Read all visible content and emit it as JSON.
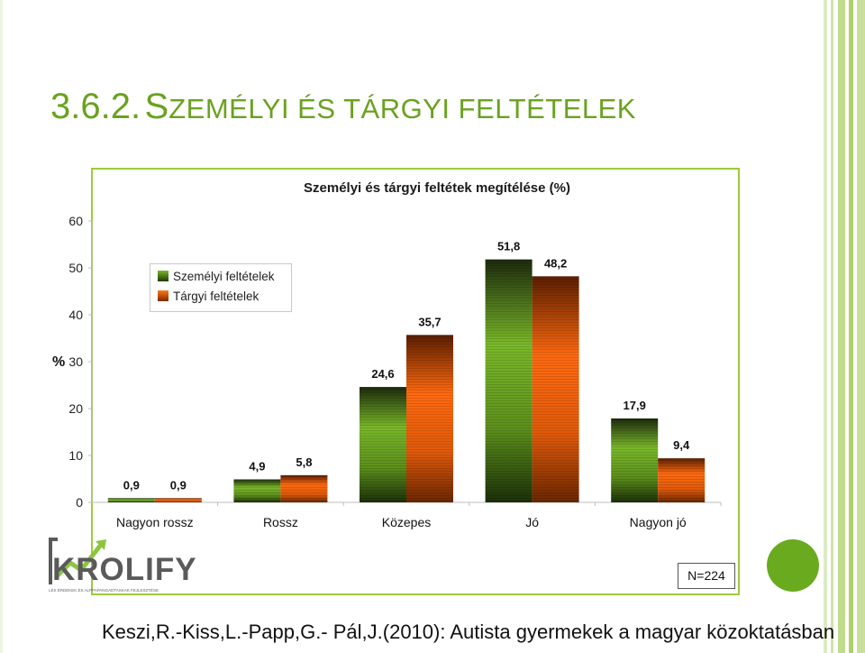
{
  "slide": {
    "heading_number": "3.6.2.",
    "heading_first_letter": "S",
    "heading_rest_1": "ZEMÉLYI ÉS ",
    "heading_rest_2": "TÁRGYI FELTÉTELEK",
    "citation": "Keszi,R.-Kiss,L.-Papp,G.- Pál,J.(2010): Autista gyermekek a magyar közoktatásban",
    "sample_size": "N=224",
    "logo": "KROLIFY",
    "logo_tagline": "LÉS ÉRDEKEK ÉS ALPPAPANGADTASKAK FEJLESZTÉSE",
    "accent_color": "#6aa21e"
  },
  "chart_data": {
    "type": "bar",
    "title": "Személyi és tárgyi feltétek megítélése (%)",
    "ylabel": "%",
    "ylim": [
      0,
      60
    ],
    "yticks": [
      0,
      10,
      20,
      30,
      40,
      50,
      60
    ],
    "categories": [
      "Nagyon rossz",
      "Rossz",
      "Közepes",
      "Jó",
      "Nagyon jó"
    ],
    "series": [
      {
        "name": "Személyi feltételek",
        "color": "#7ab82a",
        "values": [
          0.9,
          4.9,
          24.6,
          51.8,
          17.9
        ],
        "labels": [
          "0,9",
          "4,9",
          "24,6",
          "51,8",
          "17,9"
        ]
      },
      {
        "name": "Tárgyi feltételek",
        "color": "#ff6600",
        "values": [
          0.9,
          5.8,
          35.7,
          48.2,
          9.4
        ],
        "labels": [
          "0,9",
          "5,8",
          "35,7",
          "48,2",
          "9,4"
        ]
      }
    ],
    "legend_position": "top-left",
    "grid": false
  }
}
